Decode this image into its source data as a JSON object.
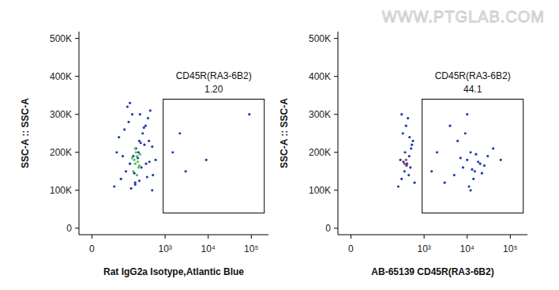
{
  "chart_data": [
    {
      "type": "scatter",
      "x_label": "Rat IgG2a Isotype,Atlantic Blue",
      "y_label": "SSC-A :: SSC-A",
      "log": "x",
      "xlim": [
        -30,
        250000
      ],
      "xticks": [
        0,
        {
          "value": 1000,
          "label": "10³"
        },
        {
          "value": 10000,
          "label": "10⁴"
        },
        {
          "value": 100000,
          "label": "10⁵"
        }
      ],
      "ylim": [
        -17000,
        518000
      ],
      "yticks": [
        0,
        {
          "value": 100000,
          "label": "100K"
        },
        {
          "value": 200000,
          "label": "200K"
        },
        {
          "value": 300000,
          "label": "300K"
        },
        {
          "value": 400000,
          "label": "400K"
        },
        {
          "value": 500000,
          "label": "500K"
        }
      ],
      "gate": {
        "name": "CD45R(RA3-6B2)",
        "percent": {
          "value": 1.2,
          "label": "1.20"
        },
        "xlim": [
          900,
          200000
        ],
        "ylim": [
          40000,
          340000
        ]
      },
      "series": [
        {
          "color": "#1f3fa8",
          "x": [
            60,
            90,
            120,
            150,
            180,
            210,
            250,
            300,
            350,
            400,
            450,
            520,
            600,
            80,
            110,
            140,
            170,
            200,
            240,
            280,
            330,
            380,
            430,
            500,
            130,
            160,
            190,
            230,
            270,
            320,
            70,
            100,
            260,
            360,
            420,
            150,
            200,
            250,
            1500,
            3000,
            2200,
            9000,
            90000,
            500
          ],
          "values": [
            110000,
            130000,
            150000,
            170000,
            190000,
            210000,
            230000,
            250000,
            270000,
            290000,
            310000,
            140000,
            180000,
            240000,
            260000,
            280000,
            300000,
            120000,
            200000,
            160000,
            220000,
            135000,
            175000,
            215000,
            320000,
            105000,
            145000,
            185000,
            225000,
            265000,
            200000,
            190000,
            300000,
            170000,
            230000,
            330000,
            115000,
            125000,
            200000,
            150000,
            250000,
            180000,
            300000,
            100000
          ]
        },
        {
          "color": "#4cc25a",
          "x": [
            180,
            200,
            220,
            240,
            190,
            210,
            230,
            250,
            170,
            260,
            200,
            220
          ],
          "values": [
            150000,
            170000,
            190000,
            160000,
            180000,
            200000,
            175000,
            165000,
            185000,
            195000,
            210000,
            140000
          ]
        }
      ]
    },
    {
      "type": "scatter",
      "x_label": "AB-65139 CD45R(RA3-6B2)",
      "y_label": "SSC-A :: SSC-A",
      "log": "x",
      "xlim": [
        -30,
        250000
      ],
      "xticks": [
        0,
        {
          "value": 1000,
          "label": "10³"
        },
        {
          "value": 10000,
          "label": "10⁴"
        },
        {
          "value": 100000,
          "label": "10⁵"
        }
      ],
      "ylim": [
        -17000,
        518000
      ],
      "yticks": [
        0,
        {
          "value": 100000,
          "label": "100K"
        },
        {
          "value": 200000,
          "label": "200K"
        },
        {
          "value": 300000,
          "label": "300K"
        },
        {
          "value": 400000,
          "label": "400K"
        },
        {
          "value": 500000,
          "label": "500K"
        }
      ],
      "gate": {
        "name": "CD45R(RA3-6B2)",
        "percent": {
          "value": 44.1,
          "label": "44.1"
        },
        "xlim": [
          900,
          200000
        ],
        "ylim": [
          40000,
          340000
        ]
      },
      "series": [
        {
          "color": "#1f3fa8",
          "x": [
            250,
            300,
            350,
            400,
            450,
            500,
            550,
            320,
            380,
            420,
            480,
            280,
            360,
            440,
            520,
            600,
            330,
            390,
            460,
            300
          ],
          "values": [
            110000,
            130000,
            150000,
            170000,
            190000,
            210000,
            230000,
            250000,
            270000,
            290000,
            160000,
            180000,
            200000,
            140000,
            220000,
            120000,
            175000,
            165000,
            240000,
            300000
          ]
        },
        {
          "color": "#1f3fa8",
          "x": [
            3000,
            5000,
            8000,
            10000,
            12000,
            15000,
            20000,
            30000,
            40000,
            6000,
            9000,
            11000,
            14000,
            18000,
            25000,
            7000,
            13000,
            16000,
            22000,
            4000,
            2000,
            1500,
            60000,
            10000,
            12000
          ],
          "values": [
            120000,
            140000,
            160000,
            180000,
            200000,
            150000,
            170000,
            190000,
            210000,
            230000,
            250000,
            110000,
            130000,
            175000,
            165000,
            185000,
            155000,
            195000,
            145000,
            270000,
            200000,
            150000,
            180000,
            300000,
            100000
          ]
        },
        {
          "color": "#d03030",
          "x": [
            350,
            380
          ],
          "values": [
            170000,
            180000
          ]
        }
      ]
    }
  ],
  "watermark": "WWW.PTGLAB.COM"
}
